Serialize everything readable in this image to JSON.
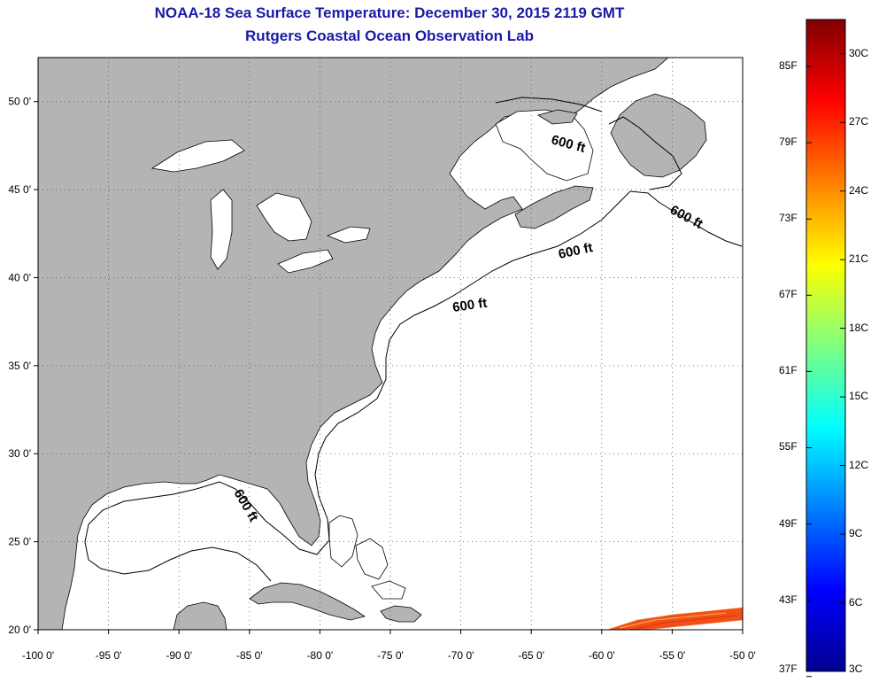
{
  "header": {
    "title": "NOAA-18 Sea Surface Temperature:  December 30, 2015 2119 GMT",
    "subtitle": "Rutgers Coastal Ocean Observation Lab"
  },
  "map": {
    "lon_range": [
      -100,
      -50
    ],
    "lat_range": [
      20,
      52.5
    ],
    "lon_ticks": [
      {
        "value": -100,
        "label": "-100 0'"
      },
      {
        "value": -95,
        "label": "-95 0'"
      },
      {
        "value": -90,
        "label": "-90 0'"
      },
      {
        "value": -85,
        "label": "-85 0'"
      },
      {
        "value": -80,
        "label": "-80 0'"
      },
      {
        "value": -75,
        "label": "-75 0'"
      },
      {
        "value": -70,
        "label": "-70 0'"
      },
      {
        "value": -65,
        "label": "-65 0'"
      },
      {
        "value": -60,
        "label": "-60 0'"
      },
      {
        "value": -55,
        "label": "-55 0'"
      },
      {
        "value": -50,
        "label": "-50 0'"
      }
    ],
    "lat_ticks": [
      {
        "value": 20,
        "label": "20 0'"
      },
      {
        "value": 25,
        "label": "25 0'"
      },
      {
        "value": 30,
        "label": "30 0'"
      },
      {
        "value": 35,
        "label": "35 0'"
      },
      {
        "value": 40,
        "label": "40 0'"
      },
      {
        "value": 45,
        "label": "45 0'"
      },
      {
        "value": 50,
        "label": "50 0'"
      }
    ],
    "contour_label": "600 ft",
    "land_color": "#b4b4b4",
    "ocean_color": "#ffffff",
    "grid": "dotted"
  },
  "colorbar": {
    "fahrenheit_labels": [
      "85F",
      "79F",
      "73F",
      "67F",
      "61F",
      "55F",
      "49F",
      "43F",
      "37F"
    ],
    "celsius_labels": [
      "30C",
      "27C",
      "24C",
      "21C",
      "18C",
      "15C",
      "12C",
      "9C",
      "6C",
      "3C"
    ],
    "range_c": [
      3,
      31.5
    ],
    "colormap": "jet"
  }
}
